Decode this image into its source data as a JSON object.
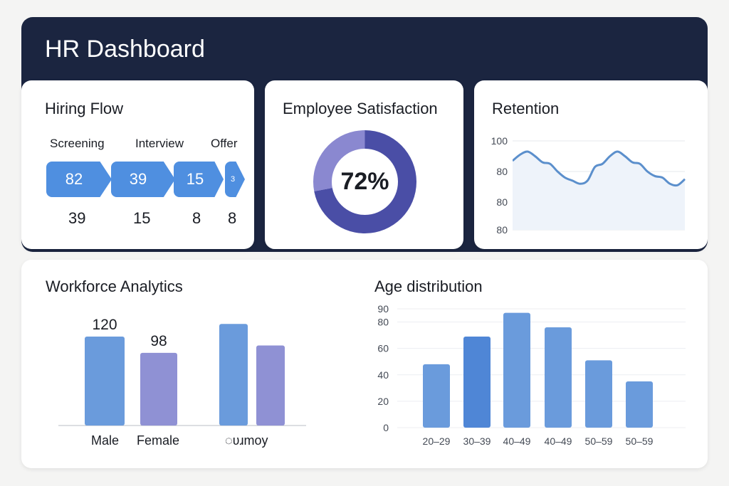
{
  "header": {
    "title": "HR Dashboard"
  },
  "hiring_flow": {
    "title": "Hiring Flow",
    "stages": [
      "Screening",
      "Interview",
      "Offer"
    ],
    "funnel_values": [
      "82",
      "39",
      "15",
      "3"
    ],
    "counts": [
      "39",
      "15",
      "8",
      "8"
    ],
    "color": "#4f8fe0"
  },
  "satisfaction": {
    "title": "Employee Satisfaction",
    "value_label": "72%",
    "percent": 72,
    "colors": {
      "main": "#4a4ea6",
      "rest": "#8a88d0"
    }
  },
  "retention": {
    "title": "Retention",
    "y_tick_labels": [
      "100",
      "80",
      "80",
      "80"
    ],
    "values": [
      87,
      91,
      93,
      90,
      86,
      85,
      80,
      76,
      74,
      72,
      74,
      83,
      85,
      90,
      93,
      90,
      86,
      85,
      80,
      77,
      76,
      72,
      71,
      75
    ],
    "line_color": "#5b8fcc"
  },
  "workforce": {
    "title": "Workforce Analytics",
    "categories": [
      "Male",
      "Female",
      "◌ʋɹmoy"
    ],
    "bars": [
      {
        "label": "120",
        "value": 120,
        "color": "#6a9bdc"
      },
      {
        "label": "98",
        "value": 98,
        "color": "#8f91d4"
      },
      {
        "label": "",
        "value": 137,
        "color": "#6a9bdc"
      },
      {
        "label": "",
        "value": 108,
        "color": "#8f91d4"
      }
    ]
  },
  "chart_data": {
    "type": "bar",
    "title": "Age distribution",
    "categories": [
      "20–29",
      "30–39",
      "40–49",
      "40–49",
      "50–59",
      "50–59"
    ],
    "values": [
      48,
      69,
      87,
      76,
      51,
      35
    ],
    "y_ticks": [
      "0",
      "20",
      "40",
      "60",
      "80",
      "90"
    ],
    "ylim": [
      0,
      90
    ],
    "grid": true,
    "color": "#6a9bdc"
  }
}
